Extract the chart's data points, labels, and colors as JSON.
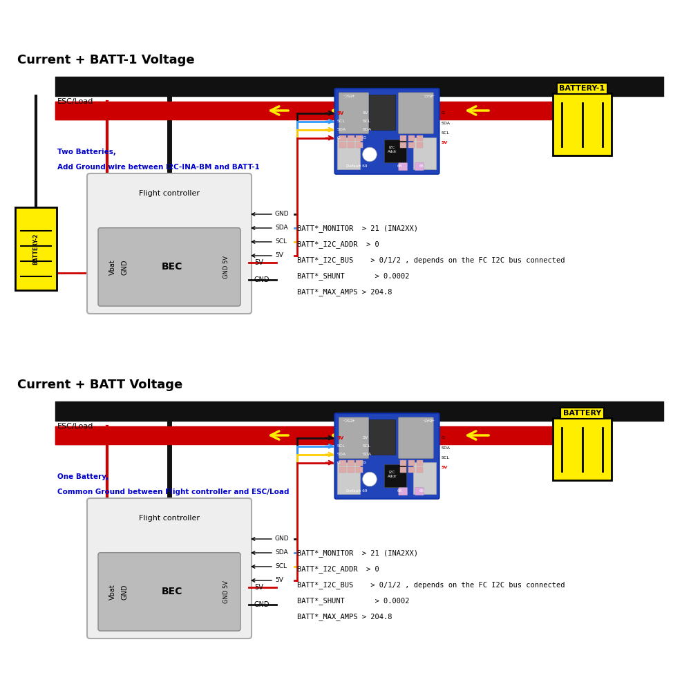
{
  "title1": "Current + BATT Voltage",
  "title2": "Current + BATT-1 Voltage",
  "bg_color": "#ffffff",
  "note1_line1": "One Battery,",
  "note1_line2": "Common Ground between Flight controller and ESC/Load",
  "note2_line1": "Two Batteries,",
  "note2_line2": "Add Ground wire between I2C-INA-BM and BATT-1",
  "params": [
    "BATT*_MONITOR  > 21 (INA2XX)",
    "BATT*_I2C_ADDR  > 0",
    "BATT*_I2C_BUS    > 0/1/2 , depends on the FC I2C bus connected",
    "BATT*_SHUNT       > 0.0002",
    "BATT*_MAX_AMPS > 204.8"
  ],
  "board_color": "#2244bb",
  "board_color_dark": "#1133aa",
  "pad_color": "#ddaaaa",
  "shunt_gray": "#aaaaaa",
  "shunt_dark": "#333333",
  "battery_yellow": "#ffee00",
  "wire_red": "#cc0000",
  "wire_black": "#111111",
  "wire_blue": "#3399ff",
  "wire_yellow": "#ffcc00",
  "arrow_yellow": "#ffee00",
  "fc_bg": "#eeeeee",
  "bec_bg": "#bbbbbb",
  "note_color": "#0000cc",
  "text_black": "#000000",
  "text_white": "#ffffff",
  "text_red": "#dd0000"
}
